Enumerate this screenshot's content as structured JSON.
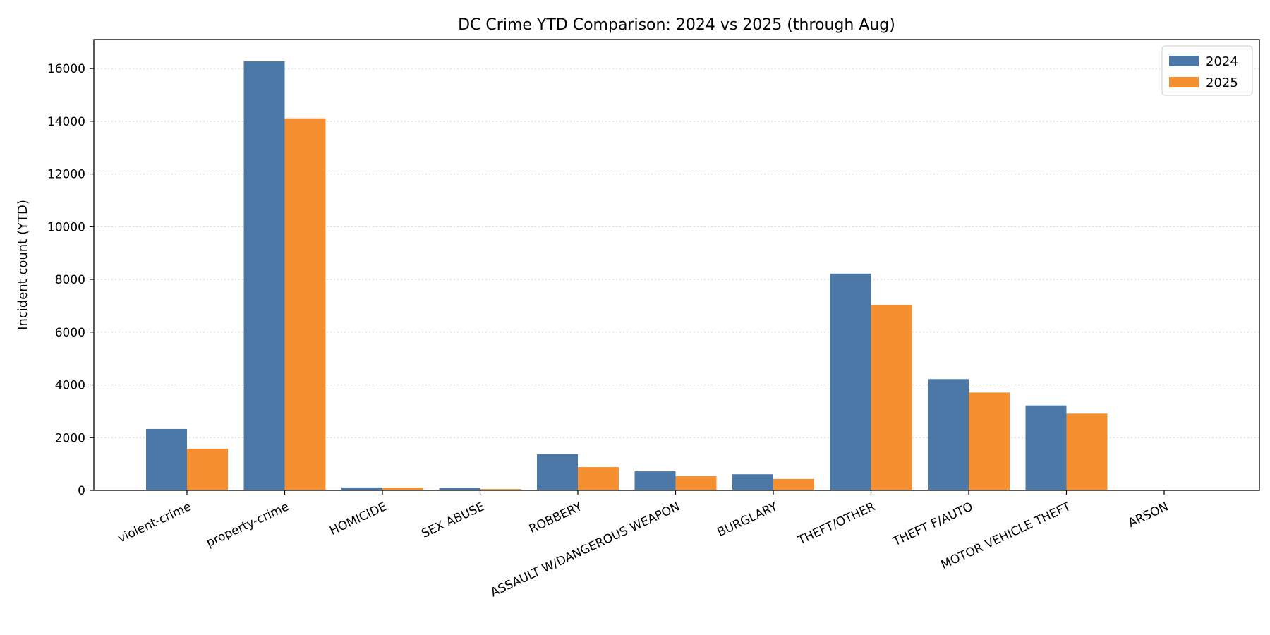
{
  "chart_data": {
    "type": "bar",
    "title": "DC Crime YTD Comparison: 2024 vs 2025 (through Aug)",
    "xlabel": "",
    "ylabel": "Incident count (YTD)",
    "ylim": [
      0,
      17100
    ],
    "yticks": [
      0,
      2000,
      4000,
      6000,
      8000,
      10000,
      12000,
      14000,
      16000
    ],
    "grid": true,
    "legend_position": "top-right",
    "categories": [
      "violent-crime",
      "property-crime",
      "HOMICIDE",
      "SEX ABUSE",
      "ROBBERY",
      "ASSAULT W/DANGEROUS WEAPON",
      "BURGLARY",
      "THEFT/OTHER",
      "THEFT F/AUTO",
      "MOTOR VEHICLE THEFT",
      "ARSON"
    ],
    "series": [
      {
        "name": "2024",
        "color": "#4c78a8",
        "values": [
          2330,
          16270,
          110,
          100,
          1370,
          720,
          610,
          8220,
          4220,
          3220,
          5
        ]
      },
      {
        "name": "2025",
        "color": "#f58f2f",
        "values": [
          1580,
          14110,
          100,
          50,
          880,
          540,
          430,
          7040,
          3710,
          2910,
          3
        ]
      }
    ]
  }
}
